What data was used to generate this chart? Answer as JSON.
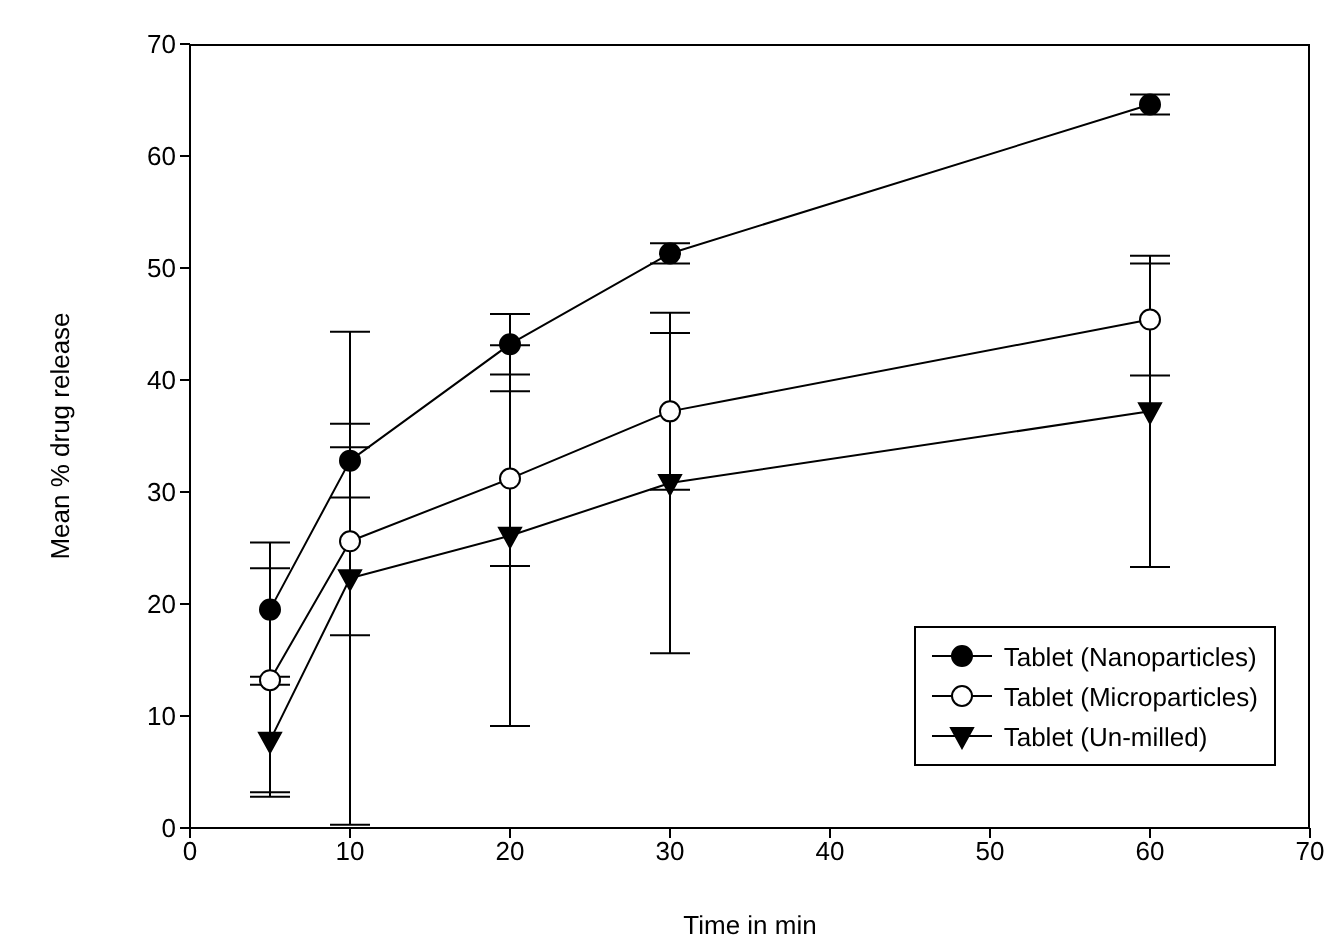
{
  "chart_data": {
    "type": "line",
    "xlabel": "Time in min",
    "ylabel": "Mean % drug release",
    "x": [
      5,
      10,
      20,
      30,
      60
    ],
    "series": [
      {
        "name": "Tablet (Nanoparticles)",
        "color": "#000000",
        "marker": "circle",
        "values": [
          19.5,
          32.8,
          43.2,
          51.3,
          64.6
        ],
        "errors": [
          6,
          3.3,
          2.7,
          0.9,
          0.9
        ]
      },
      {
        "name": "Tablet (Microparticles)",
        "color": "#000000",
        "marker": "open circle",
        "values": [
          13.2,
          25.6,
          31.2,
          37.2,
          45.4
        ],
        "errors": [
          10,
          8.4,
          7.8,
          7,
          5
        ]
      },
      {
        "name": "Tablet (Un-milled)",
        "color": "#000000",
        "marker": "triangle",
        "values": [
          7.8,
          22.3,
          26.1,
          30.8,
          37.2
        ],
        "errors": [
          5,
          22,
          17,
          15.2,
          13.9
        ]
      }
    ],
    "xlim": [
      0,
      70
    ],
    "xticks": [
      0,
      10,
      20,
      30,
      40,
      50,
      60,
      70
    ],
    "ylim": [
      0,
      70
    ],
    "yticks": [
      0,
      10,
      20,
      30,
      40,
      50,
      60,
      70
    ],
    "grid": false,
    "legend": "bottom right"
  }
}
